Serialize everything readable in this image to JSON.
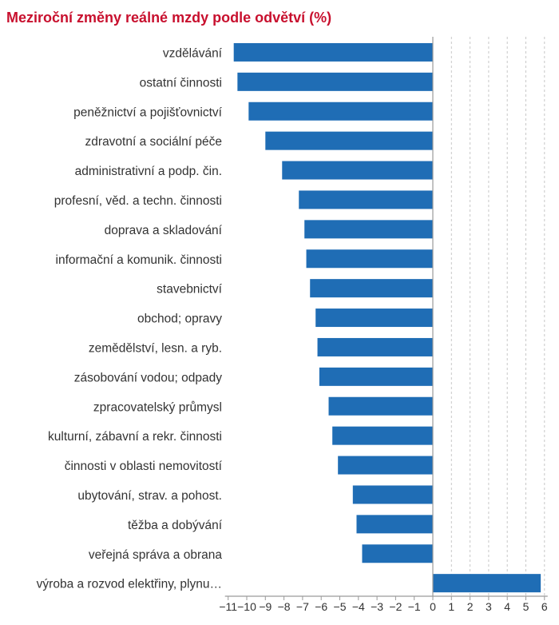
{
  "chart_data": {
    "type": "bar",
    "orientation": "horizontal",
    "title": "Meziroční změny reálné mzdy podle odvětví (%)",
    "categories": [
      "vzdělávání",
      "ostatní činnosti",
      "peněžnictví a pojišťovnictví",
      "zdravotní a sociální péče",
      "administrativní a podp. čin.",
      "profesní, věd. a techn. činnosti",
      "doprava a skladování",
      "informační a komunik. činnosti",
      "stavebnictví",
      "obchod; opravy",
      "zemědělství, lesn. a ryb.",
      "zásobování vodou; odpady",
      "zpracovatelský průmysl",
      "kulturní, zábavní a rekr. činnosti",
      "činnosti v oblasti nemovitostí",
      "ubytování, strav. a pohost.",
      "těžba a dobývání",
      "veřejná správa a obrana",
      "výroba a rozvod elektřiny, plynu…"
    ],
    "values": [
      -10.7,
      -10.5,
      -9.9,
      -9.0,
      -8.1,
      -7.2,
      -6.9,
      -6.8,
      -6.6,
      -6.3,
      -6.2,
      -6.1,
      -5.6,
      -5.4,
      -5.1,
      -4.3,
      -4.1,
      -3.8,
      5.8
    ],
    "xlim": [
      -11,
      6
    ],
    "xticks": [
      -11,
      -10,
      -9,
      -8,
      -7,
      -6,
      -5,
      -4,
      -3,
      -2,
      -1,
      0,
      1,
      2,
      3,
      4,
      5,
      6
    ],
    "xtick_labels": [
      "−11",
      "−10",
      "−9",
      "−8",
      "−7",
      "−6",
      "−5",
      "−4",
      "−3",
      "−2",
      "−1",
      "0",
      "1",
      "2",
      "3",
      "4",
      "5",
      "6"
    ],
    "grid": "vertical dashed for positive ticks",
    "colors": {
      "bar": "#1f6db5",
      "title": "#c8102e",
      "axis": "#9a9a9a",
      "grid": "#c8c8c8",
      "text": "#333333"
    }
  }
}
